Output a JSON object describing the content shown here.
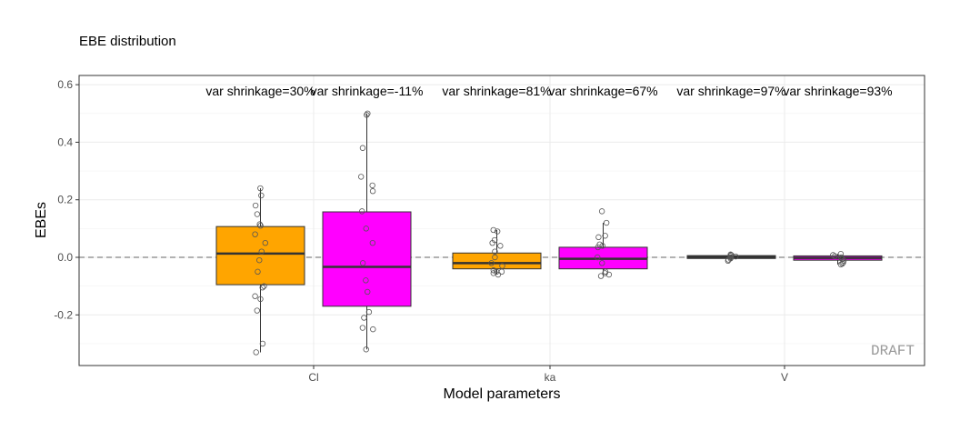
{
  "chart_data": {
    "type": "box",
    "title": "EBE distribution",
    "xlabel": "Model parameters",
    "ylabel": "EBEs",
    "ylim": [
      -0.376,
      0.632
    ],
    "yticks": [
      "-0.2",
      "0.0",
      "0.2",
      "0.4",
      "0.6"
    ],
    "ytick_values": [
      -0.2,
      0,
      0.2,
      0.4,
      0.6
    ],
    "categories": [
      "Cl",
      "ka",
      "V"
    ],
    "grid": true,
    "reference_line": 0,
    "watermark": "DRAFT",
    "colors": {
      "series1": "#FFA500",
      "series2": "#FF00FF"
    },
    "groups": [
      {
        "category": "Cl",
        "boxes": [
          {
            "color": "#FFA500",
            "q1": -0.095,
            "median": 0.013,
            "q3": 0.107,
            "lower": -0.33,
            "upper": 0.24,
            "label": "var shrinkage=30%",
            "points": [
              0.24,
              0.215,
              0.18,
              0.15,
              0.115,
              0.11,
              0.08,
              0.05,
              0.02,
              -0.01,
              -0.05,
              -0.1,
              -0.105,
              -0.135,
              -0.145,
              -0.185,
              -0.3,
              -0.33
            ]
          },
          {
            "color": "#FF00FF",
            "q1": -0.17,
            "median": -0.033,
            "q3": 0.158,
            "lower": -0.32,
            "upper": 0.5,
            "label": "var shrinkage=-11%",
            "points": [
              0.5,
              0.495,
              0.38,
              0.28,
              0.25,
              0.23,
              0.16,
              0.1,
              0.05,
              -0.02,
              -0.08,
              -0.12,
              -0.19,
              -0.21,
              -0.245,
              -0.25,
              -0.32
            ]
          }
        ]
      },
      {
        "category": "ka",
        "boxes": [
          {
            "color": "#FFA500",
            "q1": -0.04,
            "median": -0.02,
            "q3": 0.015,
            "lower": -0.06,
            "upper": 0.095,
            "label": "var shrinkage=81%",
            "points": [
              0.095,
              0.09,
              0.06,
              0.05,
              0.04,
              0.02,
              0.0,
              -0.02,
              -0.03,
              -0.045,
              -0.05,
              -0.05,
              -0.055,
              -0.06
            ]
          },
          {
            "color": "#FF00FF",
            "q1": -0.04,
            "median": -0.005,
            "q3": 0.035,
            "lower": -0.065,
            "upper": 0.12,
            "label": "var shrinkage=67%",
            "points": [
              0.16,
              0.12,
              0.075,
              0.07,
              0.045,
              0.04,
              0.035,
              0.0,
              -0.02,
              -0.05,
              -0.055,
              -0.06,
              -0.065
            ]
          }
        ]
      },
      {
        "category": "V",
        "boxes": [
          {
            "color": "#FFA500",
            "q1": -0.004,
            "median": 0.001,
            "q3": 0.006,
            "lower": -0.012,
            "upper": 0.01,
            "label": "var shrinkage=97%",
            "points": [
              0.01,
              0.008,
              0.005,
              0.003,
              0.0,
              -0.004,
              -0.008,
              -0.012
            ]
          },
          {
            "color": "#FF00FF",
            "q1": -0.01,
            "median": -0.002,
            "q3": 0.005,
            "lower": -0.025,
            "upper": 0.012,
            "label": "var shrinkage=93%",
            "points": [
              0.012,
              0.008,
              0.004,
              0.0,
              -0.006,
              -0.012,
              -0.018,
              -0.022,
              -0.025
            ]
          }
        ]
      }
    ]
  }
}
